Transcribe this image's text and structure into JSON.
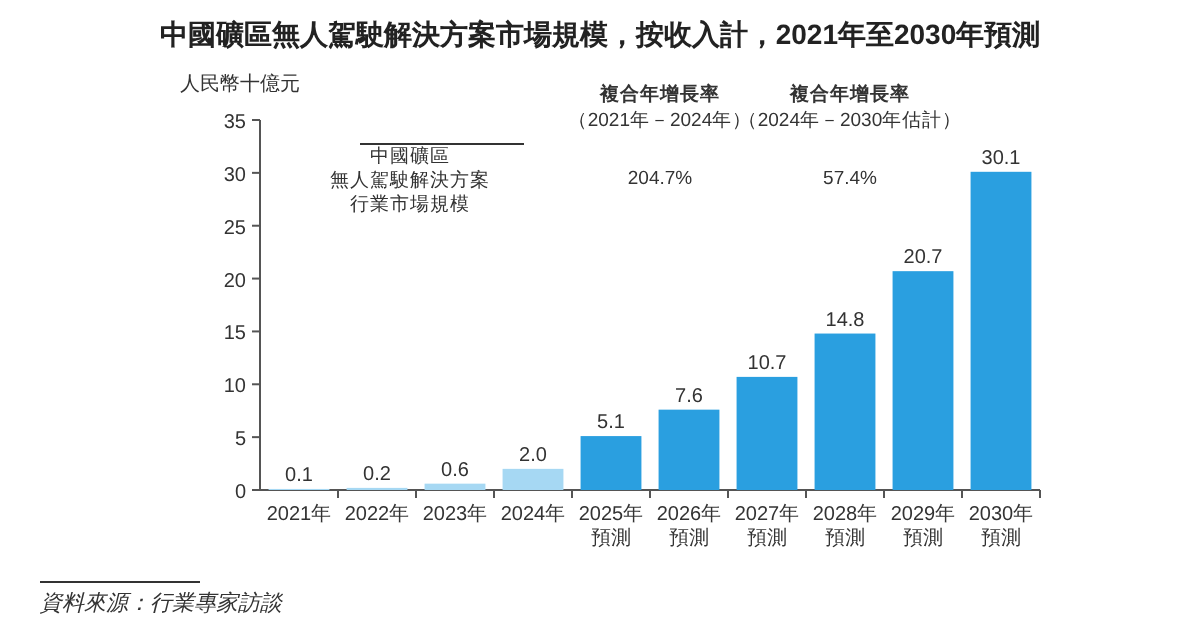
{
  "chart_data": {
    "type": "bar",
    "title": "中國礦區無人駕駛解決方案市場規模，按收入計，2021年至2030年預測",
    "ylabel": "人民幣十億元",
    "categories": [
      "2021年",
      "2022年",
      "2023年",
      "2024年",
      "2025年預測",
      "2026年預測",
      "2027年預測",
      "2028年預測",
      "2029年預測",
      "2030年預測"
    ],
    "values": [
      0.1,
      0.2,
      0.6,
      2.0,
      5.1,
      7.6,
      10.7,
      14.8,
      20.7,
      30.1
    ],
    "value_labels": [
      "0.1",
      "0.2",
      "0.6",
      "2.0",
      "5.1",
      "7.6",
      "10.7",
      "14.8",
      "20.7",
      "30.1"
    ],
    "colors": [
      "#a6d8f3",
      "#a6d8f3",
      "#a6d8f3",
      "#a6d8f3",
      "#2a9fe0",
      "#2a9fe0",
      "#2a9fe0",
      "#2a9fe0",
      "#2a9fe0",
      "#2a9fe0"
    ],
    "ylim": [
      0,
      35
    ],
    "yticks": [
      0,
      5,
      10,
      15,
      20,
      25,
      30,
      35
    ],
    "annotations": [
      "中國礦區",
      "無人駕駛解決方案",
      "行業市場規模",
      "複合年增長率",
      "（2021年－2024年）",
      "204.7%",
      "複合年增長率",
      "（2024年－2030年估計）",
      "57.4%",
      "資料來源：行業專家訪談"
    ]
  }
}
